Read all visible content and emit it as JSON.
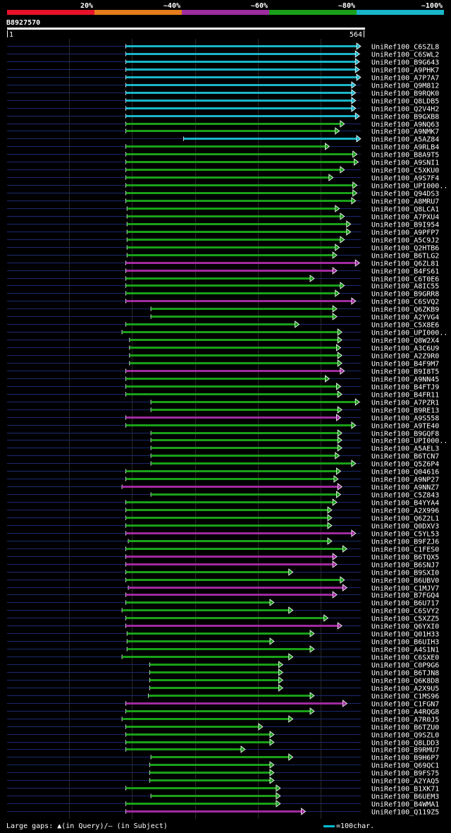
{
  "legend": {
    "items": [
      {
        "label": "20%",
        "color": "#e8132a"
      },
      {
        "label": "~40%",
        "color": "#e57c1c"
      },
      {
        "label": "~60%",
        "color": "#9e2da0"
      },
      {
        "label": "~80%",
        "color": "#19a019"
      },
      {
        "label": "~100%",
        "color": "#19b5c8"
      }
    ]
  },
  "query": {
    "id": "B8927570",
    "start_label": "1",
    "end_label": "564"
  },
  "footer": {
    "gaps_text": "Large gaps: ▲(in Query)/– (in Subject)",
    "scale_text": "=100char."
  },
  "chart_data": {
    "type": "alignment-map",
    "query_length": 564,
    "identity_colors": {
      "cyan": "#19b5c8",
      "green": "#19a019",
      "magenta": "#a02aa0"
    },
    "hits": [
      {
        "name": "UniRef100_C6SZL8",
        "start": 190,
        "end": 564,
        "color": "cyan"
      },
      {
        "name": "UniRef100_C6SWL2",
        "start": 190,
        "end": 562,
        "color": "cyan"
      },
      {
        "name": "UniRef100_B9G643",
        "start": 190,
        "end": 562,
        "color": "cyan"
      },
      {
        "name": "UniRef100_A9PHK7",
        "start": 190,
        "end": 562,
        "color": "cyan"
      },
      {
        "name": "UniRef100_A7P7A7",
        "start": 190,
        "end": 564,
        "color": "cyan"
      },
      {
        "name": "UniRef100_Q9M812",
        "start": 190,
        "end": 556,
        "color": "cyan"
      },
      {
        "name": "UniRef100_B9RQK0",
        "start": 190,
        "end": 556,
        "color": "cyan"
      },
      {
        "name": "UniRef100_Q8LDB5",
        "start": 190,
        "end": 556,
        "color": "cyan"
      },
      {
        "name": "UniRef100_Q2V4H2",
        "start": 190,
        "end": 556,
        "color": "cyan"
      },
      {
        "name": "UniRef100_B9GXB8",
        "start": 190,
        "end": 562,
        "color": "cyan"
      },
      {
        "name": "UniRef100_A9NQ63",
        "start": 190,
        "end": 538,
        "color": "green"
      },
      {
        "name": "UniRef100_A9NMK7",
        "start": 190,
        "end": 530,
        "color": "green"
      },
      {
        "name": "UniRef100_A5AZ84",
        "start": 282,
        "end": 564,
        "color": "cyan"
      },
      {
        "name": "UniRef100_A9RLB4",
        "start": 190,
        "end": 514,
        "color": "green"
      },
      {
        "name": "UniRef100_B8A9T5",
        "start": 190,
        "end": 558,
        "color": "green"
      },
      {
        "name": "UniRef100_A9SNI1",
        "start": 190,
        "end": 560,
        "color": "green"
      },
      {
        "name": "UniRef100_C5XKU0",
        "start": 190,
        "end": 538,
        "color": "green"
      },
      {
        "name": "UniRef100_A9S7F4",
        "start": 190,
        "end": 520,
        "color": "green"
      },
      {
        "name": "UniRef100_UPI000..",
        "start": 190,
        "end": 558,
        "color": "green"
      },
      {
        "name": "UniRef100_Q94DS3",
        "start": 190,
        "end": 558,
        "color": "green"
      },
      {
        "name": "UniRef100_A8MRU7",
        "start": 190,
        "end": 556,
        "color": "green"
      },
      {
        "name": "UniRef100_Q8LCA1",
        "start": 192,
        "end": 530,
        "color": "green"
      },
      {
        "name": "UniRef100_A7PXU4",
        "start": 192,
        "end": 538,
        "color": "green"
      },
      {
        "name": "UniRef100_B9I954",
        "start": 192,
        "end": 548,
        "color": "green"
      },
      {
        "name": "UniRef100_A9PFP7",
        "start": 192,
        "end": 548,
        "color": "green"
      },
      {
        "name": "UniRef100_A5C9J2",
        "start": 192,
        "end": 538,
        "color": "green"
      },
      {
        "name": "UniRef100_Q2HTB6",
        "start": 192,
        "end": 530,
        "color": "green"
      },
      {
        "name": "UniRef100_B6TLG2",
        "start": 192,
        "end": 526,
        "color": "green"
      },
      {
        "name": "UniRef100_Q6ZL81",
        "start": 190,
        "end": 562,
        "color": "magenta"
      },
      {
        "name": "UniRef100_B4FS61",
        "start": 190,
        "end": 526,
        "color": "magenta"
      },
      {
        "name": "UniRef100_C6T0E6",
        "start": 190,
        "end": 490,
        "color": "green"
      },
      {
        "name": "UniRef100_A8IC55",
        "start": 190,
        "end": 538,
        "color": "green"
      },
      {
        "name": "UniRef100_B9GRR8",
        "start": 190,
        "end": 530,
        "color": "green"
      },
      {
        "name": "UniRef100_C6SVQ2",
        "start": 190,
        "end": 556,
        "color": "magenta"
      },
      {
        "name": "UniRef100_Q6ZKB9",
        "start": 230,
        "end": 526,
        "color": "green"
      },
      {
        "name": "UniRef100_A2YVG4",
        "start": 230,
        "end": 526,
        "color": "green"
      },
      {
        "name": "UniRef100_C5X8E6",
        "start": 190,
        "end": 466,
        "color": "green"
      },
      {
        "name": "UniRef100_UPI000..",
        "start": 184,
        "end": 534,
        "color": "green"
      },
      {
        "name": "UniRef100_Q8W2X4",
        "start": 196,
        "end": 534,
        "color": "green"
      },
      {
        "name": "UniRef100_A3C6U9",
        "start": 196,
        "end": 532,
        "color": "green"
      },
      {
        "name": "UniRef100_A2Z9R0",
        "start": 196,
        "end": 534,
        "color": "green"
      },
      {
        "name": "UniRef100_B4F9M7",
        "start": 196,
        "end": 534,
        "color": "green"
      },
      {
        "name": "UniRef100_B9I8T5",
        "start": 190,
        "end": 538,
        "color": "magenta"
      },
      {
        "name": "UniRef100_A9NN45",
        "start": 190,
        "end": 514,
        "color": "green"
      },
      {
        "name": "UniRef100_B4FTJ9",
        "start": 190,
        "end": 532,
        "color": "green"
      },
      {
        "name": "UniRef100_B4FR11",
        "start": 190,
        "end": 534,
        "color": "green"
      },
      {
        "name": "UniRef100_A7PZR1",
        "start": 230,
        "end": 562,
        "color": "green"
      },
      {
        "name": "UniRef100_B9RE13",
        "start": 230,
        "end": 534,
        "color": "green"
      },
      {
        "name": "UniRef100_A9S558",
        "start": 190,
        "end": 532,
        "color": "magenta"
      },
      {
        "name": "UniRef100_A9TE40",
        "start": 190,
        "end": 556,
        "color": "green"
      },
      {
        "name": "UniRef100_B9GQF8",
        "start": 230,
        "end": 534,
        "color": "green"
      },
      {
        "name": "UniRef100_UPI000..",
        "start": 230,
        "end": 534,
        "color": "green"
      },
      {
        "name": "UniRef100_A5AEL3",
        "start": 230,
        "end": 534,
        "color": "green"
      },
      {
        "name": "UniRef100_B6TCN7",
        "start": 230,
        "end": 530,
        "color": "green"
      },
      {
        "name": "UniRef100_Q5Z6P4",
        "start": 230,
        "end": 556,
        "color": "green"
      },
      {
        "name": "UniRef100_Q04616",
        "start": 190,
        "end": 532,
        "color": "green"
      },
      {
        "name": "UniRef100_A9NP27",
        "start": 190,
        "end": 528,
        "color": "green"
      },
      {
        "name": "UniRef100_A9NNZ7",
        "start": 184,
        "end": 534,
        "color": "magenta"
      },
      {
        "name": "UniRef100_C5Z843",
        "start": 230,
        "end": 532,
        "color": "green"
      },
      {
        "name": "UniRef100_B4YYA4",
        "start": 190,
        "end": 526,
        "color": "green"
      },
      {
        "name": "UniRef100_A2X996",
        "start": 190,
        "end": 518,
        "color": "green"
      },
      {
        "name": "UniRef100_Q6Z2L1",
        "start": 190,
        "end": 518,
        "color": "green"
      },
      {
        "name": "UniRef100_Q0DXV3",
        "start": 190,
        "end": 518,
        "color": "green"
      },
      {
        "name": "UniRef100_C5YL53",
        "start": 190,
        "end": 556,
        "color": "magenta"
      },
      {
        "name": "UniRef100_B9FZJ6",
        "start": 194,
        "end": 518,
        "color": "green"
      },
      {
        "name": "UniRef100_C1FES0",
        "start": 190,
        "end": 542,
        "color": "green"
      },
      {
        "name": "UniRef100_B6TQX5",
        "start": 190,
        "end": 526,
        "color": "magenta"
      },
      {
        "name": "UniRef100_B6SNJ7",
        "start": 190,
        "end": 526,
        "color": "magenta"
      },
      {
        "name": "UniRef100_B9SXI0",
        "start": 190,
        "end": 456,
        "color": "green"
      },
      {
        "name": "UniRef100_B6UBV0",
        "start": 190,
        "end": 538,
        "color": "green"
      },
      {
        "name": "UniRef100_C1MJV7",
        "start": 194,
        "end": 542,
        "color": "magenta"
      },
      {
        "name": "UniRef100_B7FGQ4",
        "start": 190,
        "end": 526,
        "color": "magenta"
      },
      {
        "name": "UniRef100_B6U717",
        "start": 190,
        "end": 426,
        "color": "green"
      },
      {
        "name": "UniRef100_C6SVY2",
        "start": 184,
        "end": 456,
        "color": "green"
      },
      {
        "name": "UniRef100_C5XZZ5",
        "start": 190,
        "end": 512,
        "color": "green"
      },
      {
        "name": "UniRef100_Q6YXI0",
        "start": 190,
        "end": 534,
        "color": "magenta"
      },
      {
        "name": "UniRef100_Q01H33",
        "start": 192,
        "end": 490,
        "color": "green"
      },
      {
        "name": "UniRef100_B6UIH3",
        "start": 192,
        "end": 426,
        "color": "green"
      },
      {
        "name": "UniRef100_A4S1N1",
        "start": 192,
        "end": 490,
        "color": "green"
      },
      {
        "name": "UniRef100_C6SXE0",
        "start": 184,
        "end": 456,
        "color": "green"
      },
      {
        "name": "UniRef100_C0P9G6",
        "start": 228,
        "end": 440,
        "color": "green"
      },
      {
        "name": "UniRef100_B6TJN8",
        "start": 228,
        "end": 440,
        "color": "green"
      },
      {
        "name": "UniRef100_Q6K8D8",
        "start": 228,
        "end": 440,
        "color": "green"
      },
      {
        "name": "UniRef100_A2X9U5",
        "start": 228,
        "end": 440,
        "color": "green"
      },
      {
        "name": "UniRef100_C1MS96",
        "start": 226,
        "end": 490,
        "color": "green"
      },
      {
        "name": "UniRef100_C1FGN7",
        "start": 190,
        "end": 542,
        "color": "magenta"
      },
      {
        "name": "UniRef100_A4RQG8",
        "start": 190,
        "end": 490,
        "color": "green"
      },
      {
        "name": "UniRef100_A7R0J5",
        "start": 184,
        "end": 456,
        "color": "green"
      },
      {
        "name": "UniRef100_B6TZU0",
        "start": 190,
        "end": 408,
        "color": "green"
      },
      {
        "name": "UniRef100_Q9SZL0",
        "start": 190,
        "end": 426,
        "color": "green"
      },
      {
        "name": "UniRef100_Q8LDD3",
        "start": 190,
        "end": 426,
        "color": "green"
      },
      {
        "name": "UniRef100_B9RMU7",
        "start": 190,
        "end": 380,
        "color": "green"
      },
      {
        "name": "UniRef100_B9H6P7",
        "start": 230,
        "end": 456,
        "color": "green"
      },
      {
        "name": "UniRef100_Q69QC1",
        "start": 228,
        "end": 426,
        "color": "green"
      },
      {
        "name": "UniRef100_B9FS75",
        "start": 228,
        "end": 426,
        "color": "green"
      },
      {
        "name": "UniRef100_A2YAQ5",
        "start": 228,
        "end": 426,
        "color": "green"
      },
      {
        "name": "UniRef100_B1XK71",
        "start": 190,
        "end": 436,
        "color": "green"
      },
      {
        "name": "UniRef100_B6UEM3",
        "start": 230,
        "end": 436,
        "color": "green"
      },
      {
        "name": "UniRef100_B4WMA1",
        "start": 190,
        "end": 436,
        "color": "green"
      },
      {
        "name": "UniRef100_Q119Z5",
        "start": 190,
        "end": 476,
        "color": "magenta"
      }
    ]
  }
}
